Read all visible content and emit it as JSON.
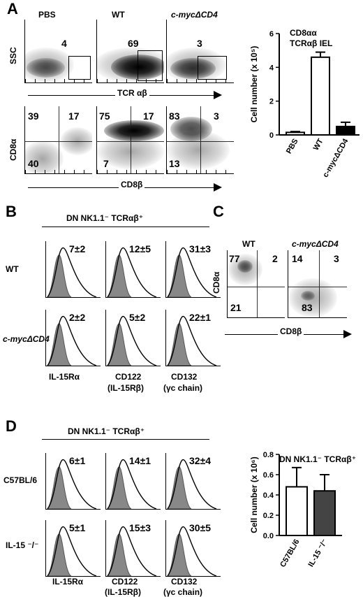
{
  "panels": {
    "a": "A",
    "b": "B",
    "c": "C",
    "d": "D"
  },
  "a": {
    "col_labels": [
      "PBS",
      "WT",
      "c-mycΔCD4"
    ],
    "top_row": {
      "ylabel": "SSC",
      "xlabel": "TCR αβ",
      "gates": [
        "4",
        "69",
        "3"
      ]
    },
    "bottom_row": {
      "ylabel": "CD8α",
      "xlabel": "CD8β",
      "quads": [
        [
          "39",
          "17",
          "40"
        ],
        [
          "75",
          "17",
          "7"
        ],
        [
          "83",
          "3",
          "13"
        ]
      ]
    },
    "bar_title_1": "CD8αα",
    "bar_title_2": "TCRαβ IEL"
  },
  "b": {
    "header": "DN NK1.1⁻ TCRαβ⁺",
    "row_labels": [
      "WT",
      "c-mycΔCD4"
    ],
    "values": [
      [
        "7±2",
        "12±5",
        "31±3"
      ],
      [
        "2±2",
        "5±2",
        "22±1"
      ]
    ],
    "col_labels": [
      "IL-15Rα",
      "CD122",
      "(IL-15Rβ)",
      "CD132",
      "(γc chain)"
    ]
  },
  "c": {
    "col_labels": [
      "WT",
      "c-mycΔCD4"
    ],
    "quads": [
      [
        "77",
        "2",
        "21"
      ],
      [
        "14",
        "3",
        "83"
      ]
    ],
    "ylabel": "CD8α",
    "xlabel": "CD8β"
  },
  "d": {
    "header": "DN NK1.1⁻ TCRαβ⁺",
    "row_labels": [
      "C57BL/6",
      "IL-15 ⁻/⁻"
    ],
    "values": [
      [
        "6±1",
        "14±1",
        "32±4"
      ],
      [
        "5±1",
        "15±3",
        "30±5"
      ]
    ],
    "col_labels": [
      "IL-15Rα",
      "CD122",
      "(IL-15Rβ)",
      "CD132",
      "(γc chain)"
    ],
    "bar_title": "DN NK1.1⁻ TCRαβ⁺"
  },
  "chart_data": [
    {
      "type": "bar",
      "categories": [
        "PBS",
        "WT",
        "c-mycΔCD4"
      ],
      "values": [
        0.15,
        4.6,
        0.5
      ],
      "errors": [
        0.05,
        0.3,
        0.25
      ],
      "ylabel": "Cell number (x 10⁵)",
      "ylim": [
        0,
        6
      ],
      "yticks": [
        "0",
        "2",
        "4",
        "6"
      ],
      "colors": [
        "#ffffff",
        "#ffffff",
        "#000000"
      ]
    },
    {
      "type": "bar",
      "categories": [
        "C57BL/6",
        "IL-15 ⁻/⁻"
      ],
      "values": [
        0.48,
        0.44
      ],
      "errors": [
        0.19,
        0.16
      ],
      "ylabel": "Cell number (x 10⁶)",
      "ylim": [
        0,
        0.8
      ],
      "yticks": [
        "0.0",
        "0.2",
        "0.4",
        "0.6",
        "0.8"
      ],
      "colors": [
        "#ffffff",
        "#444444"
      ]
    }
  ]
}
